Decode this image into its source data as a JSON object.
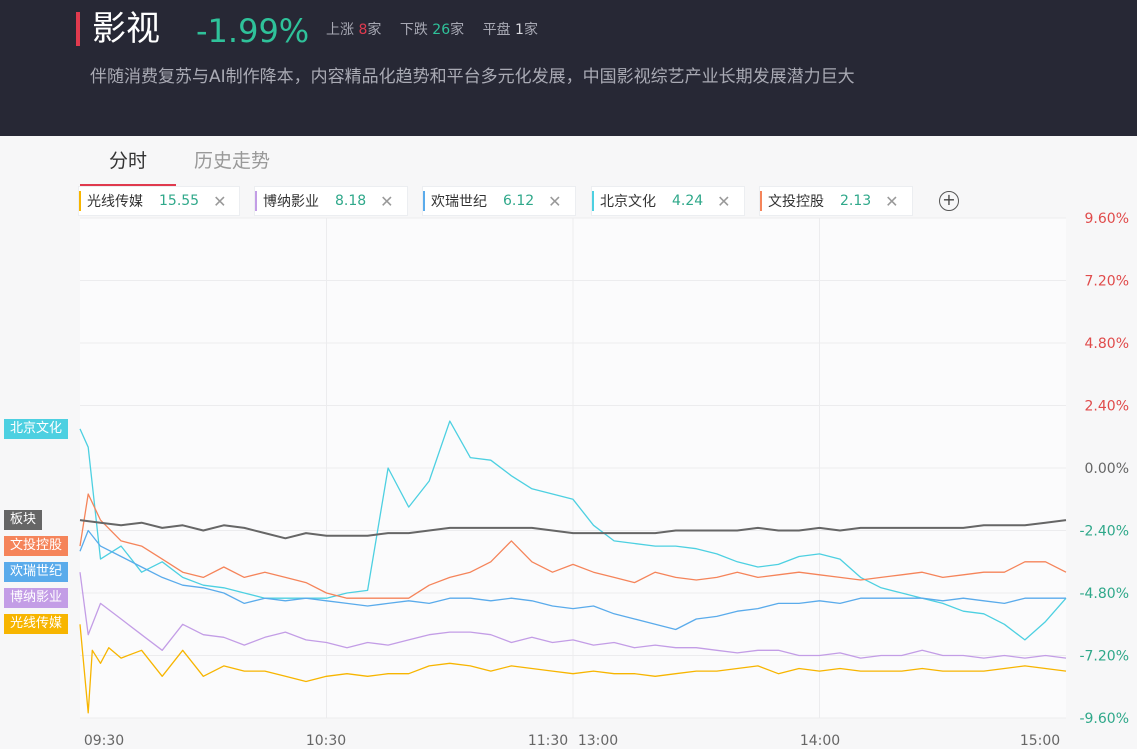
{
  "header": {
    "title": "影视",
    "change": "-1.99%",
    "stats": [
      {
        "label": "上涨",
        "count": "8",
        "unit": "家",
        "kind": "up"
      },
      {
        "label": "下跌",
        "count": "26",
        "unit": "家",
        "kind": "down"
      },
      {
        "label": "平盘",
        "count": "1",
        "unit": "家",
        "kind": "flat"
      }
    ],
    "description": "伴随消费复苏与AI制作降本，内容精品化趋势和平台多元化发展，中国影视综艺产业长期发展潜力巨大"
  },
  "tabs": [
    {
      "label": "分时",
      "active": true
    },
    {
      "label": "历史走势",
      "active": false
    }
  ],
  "chips": [
    {
      "name": "光线传媒",
      "value": "15.55",
      "color": "#f7b500"
    },
    {
      "name": "博纳影业",
      "value": "8.18",
      "color": "#c39de6"
    },
    {
      "name": "欢瑞世纪",
      "value": "6.12",
      "color": "#5aabeb"
    },
    {
      "name": "北京文化",
      "value": "4.24",
      "color": "#4dd0e1"
    },
    {
      "name": "文投控股",
      "value": "2.13",
      "color": "#f5845a"
    }
  ],
  "icons": {
    "close": "close-icon",
    "add": "plus-circle-icon"
  },
  "chart_data": {
    "type": "line",
    "y_ticks": [
      "9.60%",
      "7.20%",
      "4.80%",
      "2.40%",
      "0.00%",
      "-2.40%",
      "-4.80%",
      "-7.20%",
      "-9.60%"
    ],
    "ylim": [
      -9.6,
      9.6
    ],
    "x_ticks": [
      "09:30",
      "10:30",
      "11:30",
      "13:00",
      "14:00",
      "15:00"
    ],
    "x_range": [
      0,
      240
    ],
    "grid": true,
    "series": [
      {
        "name": "北京文化",
        "color": "#4dd0e1",
        "x": [
          0,
          2,
          5,
          10,
          15,
          20,
          25,
          30,
          35,
          40,
          45,
          50,
          55,
          60,
          65,
          70,
          75,
          80,
          85,
          90,
          95,
          100,
          105,
          110,
          115,
          120,
          125,
          130,
          135,
          140,
          145,
          150,
          155,
          160,
          165,
          170,
          175,
          180,
          185,
          190,
          195,
          200,
          205,
          210,
          215,
          220,
          225,
          230,
          235,
          240
        ],
        "y": [
          1.5,
          0.8,
          -3.5,
          -3.0,
          -4.0,
          -3.6,
          -4.2,
          -4.5,
          -4.6,
          -4.8,
          -5.0,
          -5.0,
          -5.0,
          -5.0,
          -4.8,
          -4.7,
          0.0,
          -1.5,
          -0.5,
          1.8,
          0.4,
          0.3,
          -0.3,
          -0.8,
          -1.0,
          -1.2,
          -2.2,
          -2.8,
          -2.9,
          -3.0,
          -3.0,
          -3.1,
          -3.3,
          -3.6,
          -3.8,
          -3.7,
          -3.4,
          -3.3,
          -3.5,
          -4.2,
          -4.6,
          -4.8,
          -5.0,
          -5.2,
          -5.5,
          -5.6,
          -6.0,
          -6.6,
          -5.9,
          -5.0
        ]
      },
      {
        "name": "文投控股",
        "color": "#f5845a",
        "x": [
          0,
          2,
          5,
          10,
          15,
          20,
          25,
          30,
          35,
          40,
          45,
          50,
          55,
          60,
          65,
          70,
          75,
          80,
          85,
          90,
          95,
          100,
          105,
          110,
          115,
          120,
          125,
          130,
          135,
          140,
          145,
          150,
          155,
          160,
          165,
          170,
          175,
          180,
          185,
          190,
          195,
          200,
          205,
          210,
          215,
          220,
          225,
          230,
          235,
          240
        ],
        "y": [
          -3.0,
          -1.0,
          -2.0,
          -2.8,
          -3.0,
          -3.5,
          -4.0,
          -4.2,
          -3.8,
          -4.2,
          -4.0,
          -4.2,
          -4.4,
          -4.8,
          -5.0,
          -5.0,
          -5.0,
          -5.0,
          -4.5,
          -4.2,
          -4.0,
          -3.6,
          -2.8,
          -3.6,
          -4.0,
          -3.7,
          -4.0,
          -4.2,
          -4.4,
          -4.0,
          -4.2,
          -4.3,
          -4.2,
          -4.0,
          -4.2,
          -4.1,
          -4.0,
          -4.1,
          -4.2,
          -4.3,
          -4.2,
          -4.1,
          -4.0,
          -4.2,
          -4.1,
          -4.0,
          -4.0,
          -3.6,
          -3.6,
          -4.0
        ]
      },
      {
        "name": "板块",
        "color": "#666666",
        "x": [
          0,
          5,
          10,
          15,
          20,
          25,
          30,
          35,
          40,
          45,
          50,
          55,
          60,
          65,
          70,
          75,
          80,
          85,
          90,
          95,
          100,
          105,
          110,
          115,
          120,
          125,
          130,
          135,
          140,
          145,
          150,
          155,
          160,
          165,
          170,
          175,
          180,
          185,
          190,
          195,
          200,
          205,
          210,
          215,
          220,
          225,
          230,
          235,
          240
        ],
        "y": [
          -2.0,
          -2.1,
          -2.2,
          -2.1,
          -2.3,
          -2.2,
          -2.4,
          -2.2,
          -2.3,
          -2.5,
          -2.7,
          -2.5,
          -2.6,
          -2.6,
          -2.6,
          -2.5,
          -2.5,
          -2.4,
          -2.3,
          -2.3,
          -2.3,
          -2.3,
          -2.3,
          -2.4,
          -2.5,
          -2.5,
          -2.5,
          -2.5,
          -2.5,
          -2.4,
          -2.4,
          -2.4,
          -2.4,
          -2.3,
          -2.4,
          -2.4,
          -2.3,
          -2.4,
          -2.3,
          -2.3,
          -2.3,
          -2.3,
          -2.3,
          -2.3,
          -2.2,
          -2.2,
          -2.2,
          -2.1,
          -2.0
        ]
      },
      {
        "name": "欢瑞世纪",
        "color": "#5aabeb",
        "x": [
          0,
          2,
          5,
          10,
          15,
          20,
          25,
          30,
          35,
          40,
          45,
          50,
          55,
          60,
          65,
          70,
          75,
          80,
          85,
          90,
          95,
          100,
          105,
          110,
          115,
          120,
          125,
          130,
          135,
          140,
          145,
          150,
          155,
          160,
          165,
          170,
          175,
          180,
          185,
          190,
          195,
          200,
          205,
          210,
          215,
          220,
          225,
          230,
          235,
          240
        ],
        "y": [
          -3.2,
          -2.4,
          -3.0,
          -3.4,
          -3.8,
          -4.2,
          -4.5,
          -4.6,
          -4.8,
          -5.2,
          -5.0,
          -5.1,
          -5.0,
          -5.1,
          -5.2,
          -5.3,
          -5.2,
          -5.1,
          -5.2,
          -5.0,
          -5.0,
          -5.1,
          -5.0,
          -5.1,
          -5.3,
          -5.4,
          -5.3,
          -5.6,
          -5.8,
          -6.0,
          -6.2,
          -5.8,
          -5.7,
          -5.5,
          -5.4,
          -5.2,
          -5.2,
          -5.1,
          -5.2,
          -5.0,
          -5.0,
          -5.0,
          -5.0,
          -5.1,
          -5.0,
          -5.1,
          -5.2,
          -5.0,
          -5.0,
          -5.0
        ]
      },
      {
        "name": "博纳影业",
        "color": "#c39de6",
        "x": [
          0,
          2,
          5,
          10,
          15,
          20,
          25,
          30,
          35,
          40,
          45,
          50,
          55,
          60,
          65,
          70,
          75,
          80,
          85,
          90,
          95,
          100,
          105,
          110,
          115,
          120,
          125,
          130,
          135,
          140,
          145,
          150,
          155,
          160,
          165,
          170,
          175,
          180,
          185,
          190,
          195,
          200,
          205,
          210,
          215,
          220,
          225,
          230,
          235,
          240
        ],
        "y": [
          -4.0,
          -6.4,
          -5.2,
          -5.8,
          -6.4,
          -7.0,
          -6.0,
          -6.4,
          -6.5,
          -6.8,
          -6.5,
          -6.3,
          -6.6,
          -6.7,
          -6.9,
          -6.7,
          -6.8,
          -6.6,
          -6.4,
          -6.3,
          -6.3,
          -6.4,
          -6.7,
          -6.5,
          -6.7,
          -6.6,
          -6.8,
          -6.7,
          -6.9,
          -6.8,
          -6.9,
          -6.9,
          -7.0,
          -7.1,
          -7.0,
          -7.0,
          -7.2,
          -7.2,
          -7.1,
          -7.3,
          -7.2,
          -7.2,
          -7.0,
          -7.2,
          -7.2,
          -7.3,
          -7.2,
          -7.3,
          -7.2,
          -7.3
        ]
      },
      {
        "name": "光线传媒",
        "color": "#f7b500",
        "x": [
          0,
          2,
          3,
          5,
          7,
          10,
          15,
          20,
          25,
          30,
          35,
          40,
          45,
          50,
          55,
          60,
          65,
          70,
          75,
          80,
          85,
          90,
          95,
          100,
          105,
          110,
          115,
          120,
          125,
          130,
          135,
          140,
          145,
          150,
          155,
          160,
          165,
          170,
          175,
          180,
          185,
          190,
          195,
          200,
          205,
          210,
          215,
          220,
          225,
          230,
          235,
          240
        ],
        "y": [
          -6.0,
          -9.4,
          -7.0,
          -7.5,
          -6.9,
          -7.3,
          -7.0,
          -8.0,
          -7.0,
          -8.0,
          -7.6,
          -7.8,
          -7.8,
          -8.0,
          -8.2,
          -8.0,
          -7.9,
          -8.0,
          -7.9,
          -7.9,
          -7.6,
          -7.5,
          -7.6,
          -7.8,
          -7.6,
          -7.7,
          -7.8,
          -7.9,
          -7.8,
          -7.9,
          -7.9,
          -8.0,
          -7.9,
          -7.8,
          -7.8,
          -7.7,
          -7.6,
          -7.9,
          -7.7,
          -7.8,
          -7.7,
          -7.8,
          -7.8,
          -7.8,
          -7.7,
          -7.8,
          -7.8,
          -7.8,
          -7.7,
          -7.6,
          -7.7,
          -7.8
        ]
      }
    ]
  }
}
